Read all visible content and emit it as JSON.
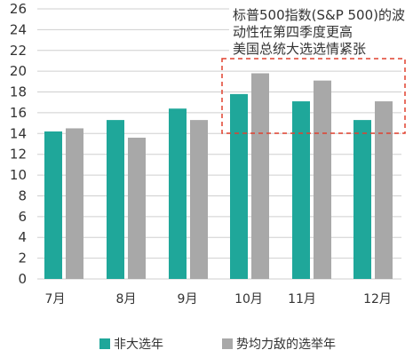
{
  "chart_data": {
    "type": "bar",
    "categories": [
      "7月",
      "8月",
      "9月",
      "10月",
      "11月",
      "12月"
    ],
    "series": [
      {
        "name": "非大选年",
        "values": [
          14.2,
          15.3,
          16.4,
          17.8,
          17.1,
          15.3
        ]
      },
      {
        "name": "势均力敌的选举年",
        "values": [
          14.5,
          13.6,
          15.3,
          19.8,
          19.1,
          17.1
        ]
      }
    ],
    "yticks": [
      0,
      2,
      4,
      6,
      8,
      10,
      12,
      14,
      16,
      18,
      20,
      22,
      24,
      26
    ],
    "ylim": [
      0,
      26
    ],
    "grid": true,
    "legend_position": "bottom",
    "annotation": [
      "标普500指数(S&P 500)的波",
      "动性在第四季度更高",
      "美国总统大选选情紧张"
    ],
    "colors": {
      "series1": "#1fa79a",
      "series2": "#a8a8a8",
      "grid": "#cfcfcf",
      "highlight_box": "#e0402f"
    }
  }
}
